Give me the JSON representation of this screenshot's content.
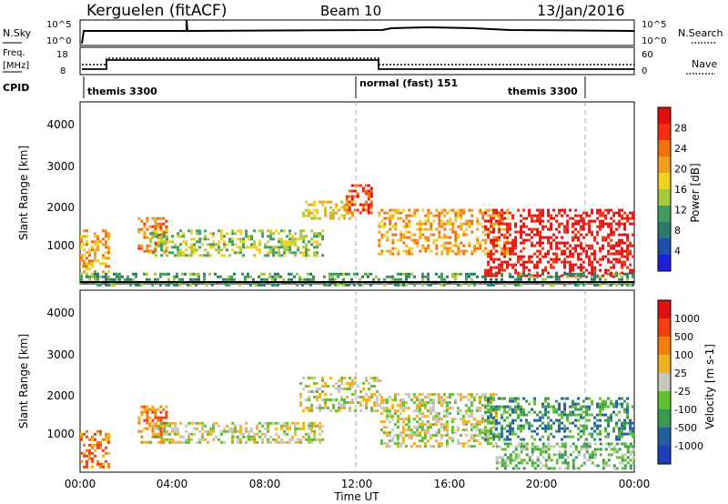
{
  "header": {
    "station": "Kerguelen (fitACF)",
    "beam": "Beam 10",
    "date": "13/Jan/2016"
  },
  "status": {
    "nsky_label": "N.Sky",
    "nsearch_label": "N.Search",
    "nsky_ticks": [
      "10^5",
      "10^0"
    ],
    "nsearch_ticks": [
      "10^5",
      "10^0"
    ],
    "freq_label_1": "Freq.",
    "freq_label_2": "[MHz]",
    "freq_ticks": [
      "18",
      "8"
    ],
    "nave_label": "Nave",
    "nave_ticks": [
      "60",
      "0"
    ],
    "cpid_label": "CPID",
    "cpid_segments": [
      {
        "label": "themis 3300",
        "start_hour": 0,
        "end_hour": 12
      },
      {
        "label": "normal (fast) 151",
        "start_hour": 12,
        "end_hour": 22
      },
      {
        "label": "themis 3300",
        "start_hour": 22,
        "end_hour": 24
      }
    ]
  },
  "x_axis": {
    "label": "Time UT",
    "ticks": [
      "00:00",
      "04:00",
      "08:00",
      "12:00",
      "16:00",
      "20:00",
      "00:00"
    ]
  },
  "chart_data": [
    {
      "type": "heatmap",
      "panel": "power",
      "ylabel": "Slant Range [km]",
      "xlim_hours": [
        0,
        24
      ],
      "ylim_km": [
        180,
        4600
      ],
      "y_ticks": [
        "1000",
        "2000",
        "3000",
        "4000"
      ],
      "colorbar_label": "Power [dB]",
      "colorbar_ticks": [
        "28",
        "24",
        "20",
        "16",
        "12",
        "8",
        "4"
      ],
      "colors": [
        "#1f1fd8",
        "#1f4fa8",
        "#2a7a6a",
        "#3f9f5a",
        "#a8c83c",
        "#f0d020",
        "#f0a020",
        "#f07010",
        "#f03010",
        "#e01010"
      ],
      "echo_regions": [
        {
          "t_start": 0.0,
          "t_end": 1.2,
          "r_start": 500,
          "r_end": 1500,
          "level": 6
        },
        {
          "t_start": 2.5,
          "t_end": 3.8,
          "r_start": 1000,
          "r_end": 1800,
          "level": 7
        },
        {
          "t_start": 3.0,
          "t_end": 10.5,
          "r_start": 900,
          "r_end": 1500,
          "level": 4
        },
        {
          "t_start": 9.5,
          "t_end": 11.8,
          "r_start": 1800,
          "r_end": 2200,
          "level": 5
        },
        {
          "t_start": 11.5,
          "t_end": 12.6,
          "r_start": 1900,
          "r_end": 2600,
          "level": 8
        },
        {
          "t_start": 12.9,
          "t_end": 18.5,
          "r_start": 900,
          "r_end": 2000,
          "level": 6
        },
        {
          "t_start": 17.5,
          "t_end": 24.0,
          "r_start": 400,
          "r_end": 2000,
          "level": 9
        },
        {
          "t_start": 0.0,
          "t_end": 24.0,
          "r_start": 180,
          "r_end": 450,
          "level": 3
        }
      ]
    },
    {
      "type": "heatmap",
      "panel": "velocity",
      "ylabel": "Slant Range [km]",
      "xlim_hours": [
        0,
        24
      ],
      "ylim_km": [
        180,
        4600
      ],
      "y_ticks": [
        "1000",
        "2000",
        "3000",
        "4000"
      ],
      "colorbar_label": "Velocity [m s-1]",
      "colorbar_ticks": [
        "1000",
        "500",
        "100",
        "25",
        "-25",
        "-100",
        "-500",
        "-1000"
      ],
      "colors": [
        "#1f3fb8",
        "#2060a0",
        "#3a9a50",
        "#60c030",
        "#c8c8c0",
        "#f0b020",
        "#f08010",
        "#f04010",
        "#e01010"
      ],
      "echo_regions": [
        {
          "t_start": 0.0,
          "t_end": 1.2,
          "r_start": 300,
          "r_end": 1200,
          "level": 6
        },
        {
          "t_start": 2.5,
          "t_end": 3.8,
          "r_start": 900,
          "r_end": 1800,
          "level": 6
        },
        {
          "t_start": 3.0,
          "t_end": 10.5,
          "r_start": 900,
          "r_end": 1400,
          "level": 4
        },
        {
          "t_start": 9.5,
          "t_end": 13.0,
          "r_start": 1700,
          "r_end": 2500,
          "level": 4
        },
        {
          "t_start": 13.0,
          "t_end": 18.0,
          "r_start": 800,
          "r_end": 2100,
          "level": 4
        },
        {
          "t_start": 17.5,
          "t_end": 24.0,
          "r_start": 1000,
          "r_end": 2000,
          "level": 2
        },
        {
          "t_start": 18.0,
          "t_end": 24.0,
          "r_start": 300,
          "r_end": 900,
          "level": 3
        }
      ]
    }
  ]
}
